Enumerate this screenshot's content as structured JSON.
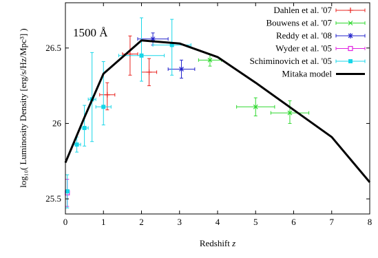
{
  "chart_data": {
    "type": "scatter",
    "title": "",
    "annotation": "1500 Å",
    "xlabel_text": "Redshift ",
    "xlabel_var": "z",
    "ylabel_text": "log₁₀( Luminosity Density [erg/s/Hz/Mpc³] )",
    "xlim": [
      0,
      8
    ],
    "ylim": [
      25.4,
      26.8
    ],
    "x_ticks": [
      0,
      1,
      2,
      3,
      4,
      5,
      6,
      7,
      8
    ],
    "y_ticks": [
      25.5,
      26,
      26.5
    ],
    "grid": false,
    "legend_position": "top-right",
    "series": [
      {
        "name": "Dahlen et al. '07",
        "color": "#e8231f",
        "marker": "plus",
        "points": [
          {
            "x": 1.7,
            "y": 26.46,
            "xerr": [
              1.5,
              1.9
            ],
            "yerr": [
              26.32,
              26.58
            ]
          },
          {
            "x": 2.2,
            "y": 26.34,
            "xerr": [
              2.0,
              2.4
            ],
            "yerr": [
              26.25,
              26.43
            ]
          },
          {
            "x": 1.1,
            "y": 26.19,
            "xerr": [
              0.9,
              1.3
            ],
            "yerr": [
              26.09,
              26.27
            ]
          }
        ]
      },
      {
        "name": "Bouwens et al. '07",
        "color": "#2ed82e",
        "marker": "cross",
        "points": [
          {
            "x": 3.8,
            "y": 26.42,
            "xerr": [
              3.5,
              4.1
            ],
            "yerr": [
              26.38,
              26.46
            ]
          },
          {
            "x": 5.0,
            "y": 26.11,
            "xerr": [
              4.5,
              5.5
            ],
            "yerr": [
              26.05,
              26.17
            ]
          },
          {
            "x": 5.9,
            "y": 26.07,
            "xerr": [
              5.4,
              6.4
            ],
            "yerr": [
              26.0,
              26.15
            ]
          }
        ]
      },
      {
        "name": "Reddy et al. '08",
        "color": "#2222cc",
        "marker": "star",
        "points": [
          {
            "x": 2.3,
            "y": 26.56,
            "xerr": [
              1.9,
              2.7
            ],
            "yerr": [
              26.52,
              26.6
            ]
          },
          {
            "x": 3.05,
            "y": 26.36,
            "xerr": [
              2.7,
              3.4
            ],
            "yerr": [
              26.3,
              26.42
            ]
          }
        ]
      },
      {
        "name": "Wyder et al. '05",
        "color": "#e020e0",
        "marker": "open-square",
        "points": [
          {
            "x": 0.05,
            "y": 25.54,
            "xerr": [
              0.0,
              0.1
            ],
            "yerr": [
              25.45,
              25.63
            ]
          }
        ]
      },
      {
        "name": "Schiminovich et al. '05",
        "color": "#17d6e8",
        "marker": "filled-square",
        "points": [
          {
            "x": 0.05,
            "y": 25.55,
            "xerr": [
              0.0,
              0.1
            ],
            "yerr": [
              25.44,
              25.66
            ]
          },
          {
            "x": 0.3,
            "y": 25.86,
            "xerr": [
              0.2,
              0.4
            ],
            "yerr": [
              25.81,
              25.91
            ]
          },
          {
            "x": 0.5,
            "y": 25.97,
            "xerr": [
              0.4,
              0.6
            ],
            "yerr": [
              25.85,
              26.12
            ]
          },
          {
            "x": 0.7,
            "y": 26.16,
            "xerr": [
              0.6,
              0.8
            ],
            "yerr": [
              25.88,
              26.47
            ]
          },
          {
            "x": 1.0,
            "y": 26.11,
            "xerr": [
              0.8,
              1.2
            ],
            "yerr": [
              25.99,
              26.41
            ]
          },
          {
            "x": 2.0,
            "y": 26.45,
            "xerr": [
              1.4,
              2.6
            ],
            "yerr": [
              26.28,
              26.7
            ]
          },
          {
            "x": 2.8,
            "y": 26.52,
            "xerr": [
              2.3,
              3.3
            ],
            "yerr": [
              26.32,
              26.69
            ]
          }
        ]
      }
    ],
    "model": {
      "name": "Mitaka model",
      "color": "#000000",
      "x": [
        0,
        0.5,
        1,
        2,
        3,
        4,
        5,
        6,
        7,
        8
      ],
      "y": [
        25.74,
        26.04,
        26.33,
        26.55,
        26.53,
        26.44,
        26.27,
        26.09,
        25.91,
        25.61
      ]
    }
  }
}
